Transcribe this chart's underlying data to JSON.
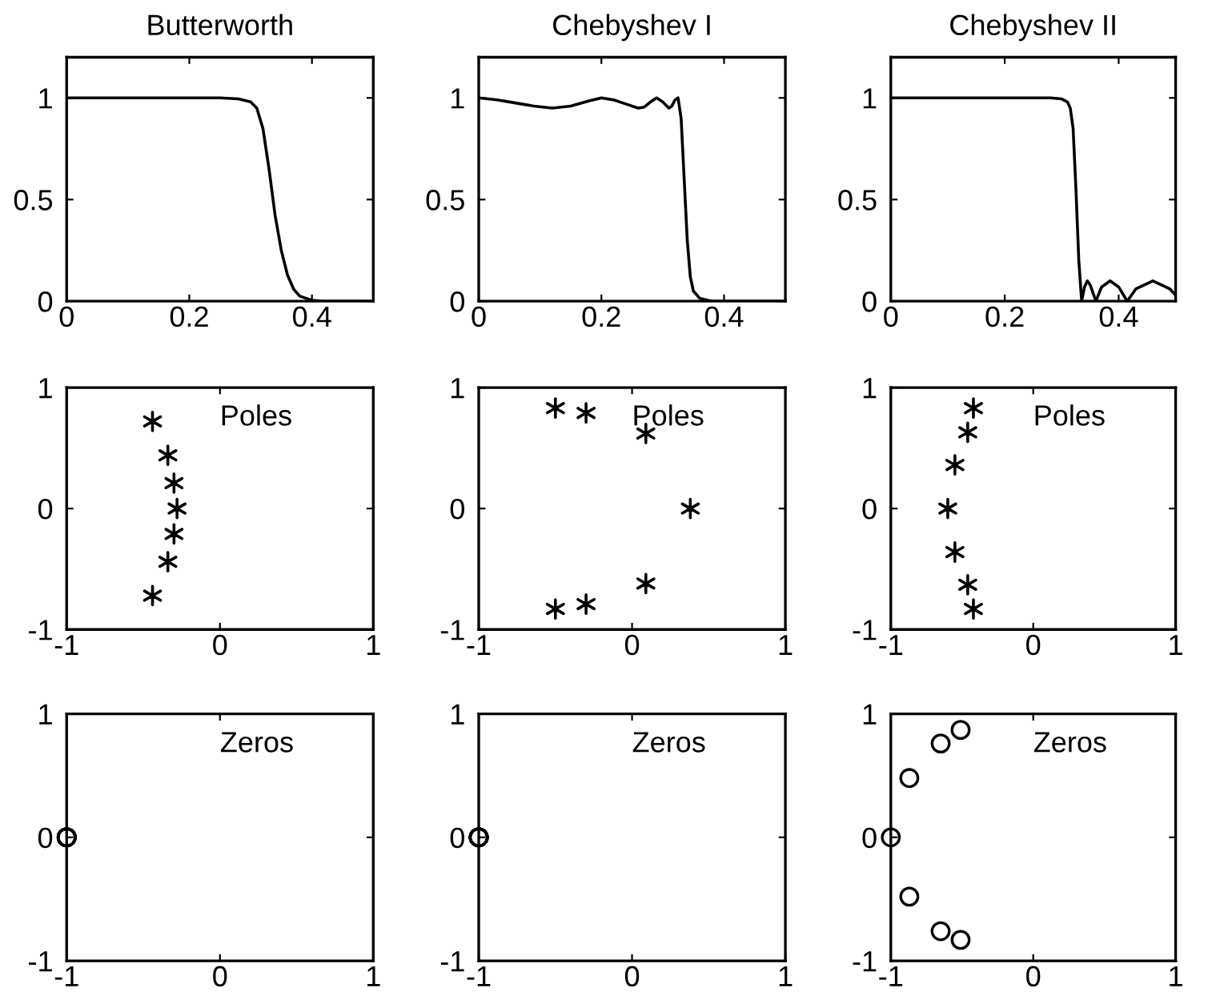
{
  "chart_data": [
    {
      "type": "line",
      "title": "Butterworth",
      "x": [
        0,
        0.1,
        0.2,
        0.25,
        0.28,
        0.3,
        0.31,
        0.32,
        0.33,
        0.34,
        0.35,
        0.36,
        0.37,
        0.38,
        0.4,
        0.42,
        0.5
      ],
      "series": [
        {
          "color": "#000000",
          "values": [
            1,
            1,
            1,
            1,
            0.995,
            0.98,
            0.95,
            0.85,
            0.65,
            0.42,
            0.25,
            0.13,
            0.06,
            0.025,
            0.005,
            0,
            0
          ]
        }
      ],
      "xlim": [
        0,
        0.5
      ],
      "xticks": [
        0,
        0.2,
        0.4
      ],
      "ylim": [
        0,
        1.2
      ],
      "yticks": [
        0,
        0.5,
        1
      ],
      "grid": false,
      "marker": "none",
      "line_style": "solid"
    },
    {
      "type": "line",
      "title": "Chebyshev I",
      "x": [
        0,
        0.03,
        0.06,
        0.09,
        0.12,
        0.15,
        0.18,
        0.2,
        0.22,
        0.24,
        0.26,
        0.27,
        0.28,
        0.29,
        0.3,
        0.31,
        0.315,
        0.32,
        0.325,
        0.33,
        0.335,
        0.34,
        0.345,
        0.35,
        0.36,
        0.38,
        0.4,
        0.5
      ],
      "series": [
        {
          "color": "#000000",
          "values": [
            1,
            0.99,
            0.975,
            0.96,
            0.95,
            0.96,
            0.985,
            1,
            0.99,
            0.97,
            0.95,
            0.955,
            0.98,
            1,
            0.98,
            0.95,
            0.96,
            0.99,
            1,
            0.9,
            0.6,
            0.3,
            0.12,
            0.05,
            0.015,
            0,
            0,
            0
          ]
        }
      ],
      "xlim": [
        0,
        0.5
      ],
      "xticks": [
        0,
        0.2,
        0.4
      ],
      "ylim": [
        0,
        1.2
      ],
      "yticks": [
        0,
        0.5,
        1
      ],
      "grid": false,
      "marker": "none",
      "line_style": "solid"
    },
    {
      "type": "line",
      "title": "Chebyshev II",
      "x": [
        0,
        0.1,
        0.2,
        0.28,
        0.3,
        0.31,
        0.315,
        0.32,
        0.325,
        0.33,
        0.335,
        0.34,
        0.345,
        0.35,
        0.36,
        0.37,
        0.385,
        0.4,
        0.415,
        0.43,
        0.46,
        0.49,
        0.5
      ],
      "series": [
        {
          "color": "#000000",
          "values": [
            1,
            1,
            1,
            1,
            0.995,
            0.98,
            0.95,
            0.85,
            0.55,
            0.2,
            0,
            0.07,
            0.1,
            0.08,
            0,
            0.07,
            0.1,
            0.07,
            0,
            0.06,
            0.1,
            0.06,
            0.03
          ]
        }
      ],
      "xlim": [
        0,
        0.5
      ],
      "xticks": [
        0,
        0.2,
        0.4
      ],
      "ylim": [
        0,
        1.2
      ],
      "yticks": [
        0,
        0.5,
        1
      ],
      "grid": false,
      "marker": "none",
      "line_style": "solid"
    },
    {
      "type": "scatter",
      "annotations": [
        "Poles"
      ],
      "x": [
        -0.44,
        -0.34,
        -0.3,
        -0.28,
        -0.3,
        -0.34,
        -0.44
      ],
      "series": [
        {
          "color": "#000000",
          "values": [
            0.72,
            0.44,
            0.21,
            0,
            -0.21,
            -0.44,
            -0.72
          ]
        }
      ],
      "xlim": [
        -1,
        1
      ],
      "xticks": [
        -1,
        0,
        1
      ],
      "ylim": [
        -1,
        1
      ],
      "yticks": [
        -1,
        0,
        1
      ],
      "grid": false,
      "marker": "cross"
    },
    {
      "type": "scatter",
      "annotations": [
        "Poles"
      ],
      "x": [
        -0.5,
        -0.3,
        0.09,
        0.38,
        0.09,
        -0.3,
        -0.5
      ],
      "series": [
        {
          "color": "#000000",
          "values": [
            0.83,
            0.79,
            0.62,
            0,
            -0.62,
            -0.79,
            -0.83
          ]
        }
      ],
      "xlim": [
        -1,
        1
      ],
      "xticks": [
        -1,
        0,
        1
      ],
      "ylim": [
        -1,
        1
      ],
      "yticks": [
        -1,
        0,
        1
      ],
      "grid": false,
      "marker": "cross"
    },
    {
      "type": "scatter",
      "annotations": [
        "Poles"
      ],
      "x": [
        -0.42,
        -0.46,
        -0.55,
        -0.6,
        -0.55,
        -0.46,
        -0.42
      ],
      "series": [
        {
          "color": "#000000",
          "values": [
            0.83,
            0.63,
            0.36,
            0,
            -0.36,
            -0.63,
            -0.83
          ]
        }
      ],
      "xlim": [
        -1,
        1
      ],
      "xticks": [
        -1,
        0,
        1
      ],
      "ylim": [
        -1,
        1
      ],
      "yticks": [
        -1,
        0,
        1
      ],
      "grid": false,
      "marker": "cross"
    },
    {
      "type": "scatter",
      "annotations": [
        "Zeros"
      ],
      "x": [
        -1,
        -1,
        -1,
        -1,
        -1,
        -1,
        -1
      ],
      "series": [
        {
          "color": "#000000",
          "values": [
            0,
            0,
            0,
            0,
            0,
            0,
            0
          ]
        }
      ],
      "xlim": [
        -1,
        1
      ],
      "xticks": [
        -1,
        0,
        1
      ],
      "ylim": [
        -1,
        1
      ],
      "yticks": [
        -1,
        0,
        1
      ],
      "grid": false,
      "marker": "circle"
    },
    {
      "type": "scatter",
      "annotations": [
        "Zeros"
      ],
      "x": [
        -1,
        -1,
        -1,
        -1,
        -1,
        -1,
        -1
      ],
      "series": [
        {
          "color": "#000000",
          "values": [
            0,
            0,
            0,
            0,
            0,
            0,
            0
          ]
        }
      ],
      "xlim": [
        -1,
        1
      ],
      "xticks": [
        -1,
        0,
        1
      ],
      "ylim": [
        -1,
        1
      ],
      "yticks": [
        -1,
        0,
        1
      ],
      "grid": false,
      "marker": "circle"
    },
    {
      "type": "scatter",
      "annotations": [
        "Zeros"
      ],
      "x": [
        -1,
        -0.87,
        -0.65,
        -0.51,
        -0.87,
        -0.65,
        -0.51
      ],
      "series": [
        {
          "color": "#000000",
          "values": [
            0,
            0.48,
            0.76,
            0.87,
            -0.48,
            -0.76,
            -0.83
          ]
        }
      ],
      "xlim": [
        -1,
        1
      ],
      "xticks": [
        -1,
        0,
        1
      ],
      "ylim": [
        -1,
        1
      ],
      "yticks": [
        -1,
        0,
        1
      ],
      "grid": false,
      "marker": "circle"
    }
  ]
}
